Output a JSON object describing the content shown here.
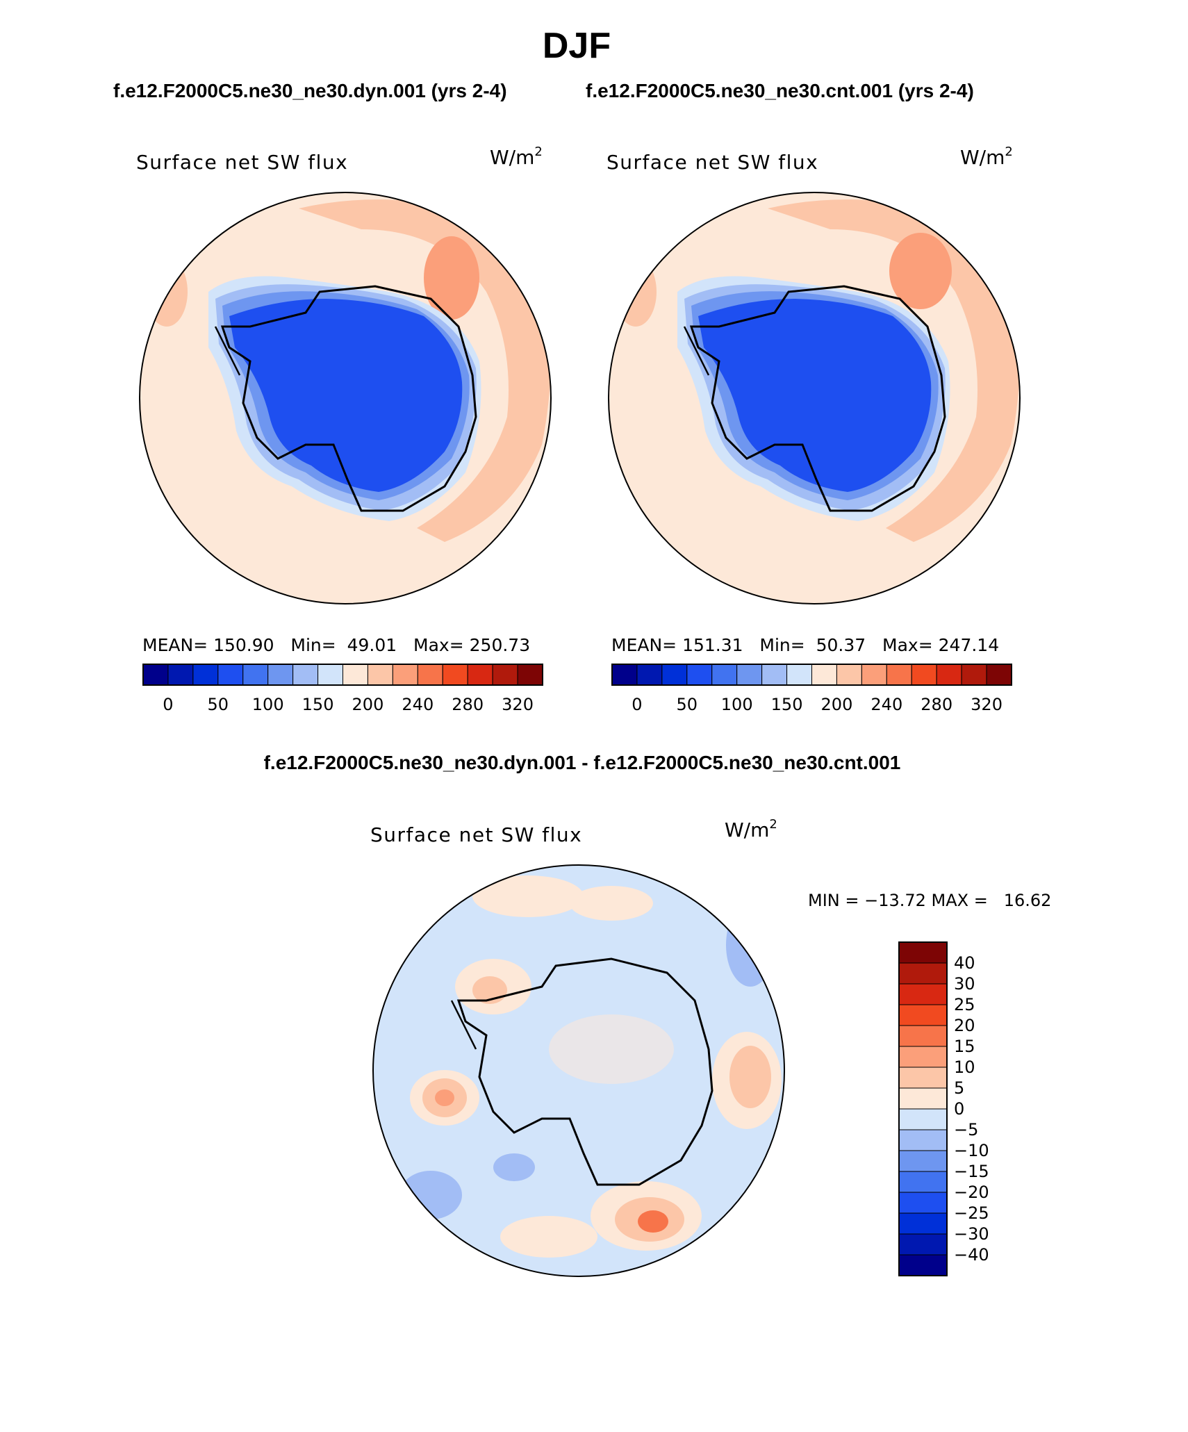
{
  "title": "DJF",
  "top_header": {
    "case1": "f.e12.F2000C5.ne30_ne30.dyn.001 (yrs 2-4)",
    "case2": "f.e12.F2000C5.ne30_ne30.cnt.001 (yrs 2-4)"
  },
  "panels": {
    "left": {
      "variable": "Surface net SW flux",
      "units_base": "W/m",
      "units_exp": "2",
      "stats": {
        "mean_label": "MEAN=",
        "mean": "150.90",
        "min_label": "Min=",
        "min": "49.01",
        "max_label": "Max=",
        "max": "250.73"
      }
    },
    "right": {
      "variable": "Surface net SW flux",
      "units_base": "W/m",
      "units_exp": "2",
      "stats": {
        "mean_label": "MEAN=",
        "mean": "151.31",
        "min_label": "Min=",
        "min": "50.37",
        "max_label": "Max=",
        "max": "247.14"
      }
    },
    "diff": {
      "header": "f.e12.F2000C5.ne30_ne30.dyn.001 - f.e12.F2000C5.ne30_ne30.cnt.001",
      "variable": "Surface net SW flux",
      "units_base": "W/m",
      "units_exp": "2",
      "minmax": "MIN = −13.72 MAX =   16.62"
    }
  },
  "colorbar_abs": {
    "colors": [
      "#00008b",
      "#0018b0",
      "#0030d8",
      "#1e4ff0",
      "#4173f0",
      "#6e96f0",
      "#a2bdf5",
      "#d2e4fa",
      "#fde8d8",
      "#fcc6a8",
      "#fb9f7a",
      "#f7744a",
      "#f14a20",
      "#d82812",
      "#b01a0c",
      "#7d0505"
    ],
    "ticks": [
      "0",
      "50",
      "100",
      "150",
      "200",
      "240",
      "280",
      "320"
    ]
  },
  "colorbar_diff": {
    "colors": [
      "#7d0505",
      "#b01a0c",
      "#d82812",
      "#f14a20",
      "#f7744a",
      "#fb9f7a",
      "#fcc6a8",
      "#fde8d8",
      "#d2e4fa",
      "#a2bdf5",
      "#6e96f0",
      "#4173f0",
      "#1e4ff0",
      "#0030d8",
      "#0018b0",
      "#00008b"
    ],
    "labels": [
      "40",
      "30",
      "25",
      "20",
      "15",
      "10",
      "5",
      "0",
      "−5",
      "−10",
      "−15",
      "−20",
      "−25",
      "−30",
      "−40"
    ]
  }
}
